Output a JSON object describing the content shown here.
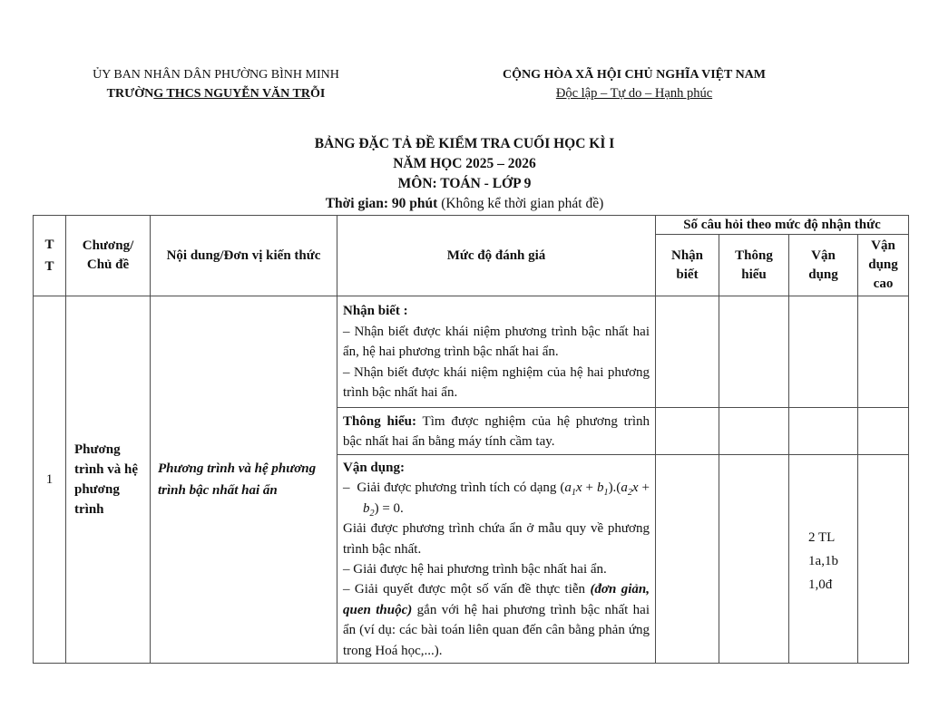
{
  "header": {
    "org": {
      "line1": "ỦY BAN NHÂN DÂN PHƯỜNG BÌNH MINH",
      "line2_pre": "TRƯỜN",
      "line2_underline": "G THCS NGUYỄN VĂN TR",
      "line2_post": "ỖI"
    },
    "national": {
      "line1": "CỘNG HÒA XÃ HỘI CHỦ NGHĨA VIỆT NAM",
      "line2": "Độc lập – Tự do – Hạnh phúc"
    }
  },
  "title": {
    "line1": "BẢNG ĐẶC TẢ ĐỀ KIỂM TRA CUỐI HỌC KÌ I",
    "line2": "NĂM HỌC 2025 – 2026",
    "line3": "MÔN: TOÁN - LỚP 9",
    "line4_bold": "Thời gian: 90 phút",
    "line4_rest": " (Không kể thời gian phát đề)"
  },
  "table": {
    "headers": {
      "tt": "TT",
      "chapter": "Chương/ Chủ đề",
      "content": "Nội dung/Đơn vị kiến thức",
      "level": "Mức độ đánh giá",
      "question_group": "Số câu hỏi theo mức độ nhận thức",
      "level1": "Nhận biết",
      "level2": "Thông hiểu",
      "level3": "Vận dụng",
      "level4": "Vận dụng cao"
    },
    "body": {
      "tt": "1",
      "chapter": "Phương trình và hệ phương trình",
      "topic": "Phương trình và hệ phương trình bậc nhất hai ẩn",
      "sections": {
        "nhan_biet": [
          [
            {
              "t": "Nhận biết :",
              "b": true
            }
          ],
          [
            {
              "t": "– Nhận biết được khái niệm phương trình bậc nhất hai ẩn, hệ hai phương trình bậc nhất hai ẩn."
            }
          ],
          [
            {
              "t": "– Nhận biết được khái niệm nghiệm của hệ hai phương trình bậc nhất hai ẩn."
            }
          ]
        ],
        "thong_hieu": [
          [
            {
              "t": "Thông hiểu:",
              "b": true
            },
            {
              "t": " Tìm được nghiệm của hệ phương trình bậc nhất hai ẩn bằng máy tính cầm tay."
            }
          ]
        ],
        "van_dung": [
          [
            {
              "t": "Vận dụng:",
              "b": true
            }
          ],
          [
            {
              "t": "–  Giải được phương trình tích có dạng ("
            },
            {
              "t": "a",
              "i": true
            },
            {
              "t": "1",
              "i": true,
              "sub": true
            },
            {
              "t": "x",
              "i": true
            },
            {
              "t": " + "
            },
            {
              "t": "b",
              "i": true
            },
            {
              "t": "1",
              "i": true,
              "sub": true
            },
            {
              "t": ").("
            },
            {
              "t": "a",
              "i": true
            },
            {
              "t": "2",
              "i": true,
              "sub": true
            },
            {
              "t": "x",
              "i": true
            },
            {
              "t": " + "
            },
            {
              "t": "b",
              "i": true
            },
            {
              "t": "2",
              "i": true,
              "sub": true
            },
            {
              "t": ") = 0."
            }
          ],
          [
            {
              "t": "Giải được phương trình chứa ẩn ở mẫu quy về phương trình bậc nhất."
            }
          ],
          [
            {
              "t": "– Giải được hệ hai phương trình bậc nhất hai ẩn."
            }
          ],
          [
            {
              "t": "– Giải quyết được một số vấn đề thực tiễn "
            },
            {
              "t": "(đơn giản, quen thuộc)",
              "b": true,
              "i": true
            },
            {
              "t": " gắn với hệ hai phương trình bậc nhất hai ẩn (ví dụ: các bài toán liên quan đến cân bằng phản ứng trong Hoá học,...)."
            }
          ]
        ]
      },
      "counts": {
        "van_dung_lines": [
          "2 TL",
          "1a,1b",
          "1,0đ"
        ]
      }
    }
  }
}
